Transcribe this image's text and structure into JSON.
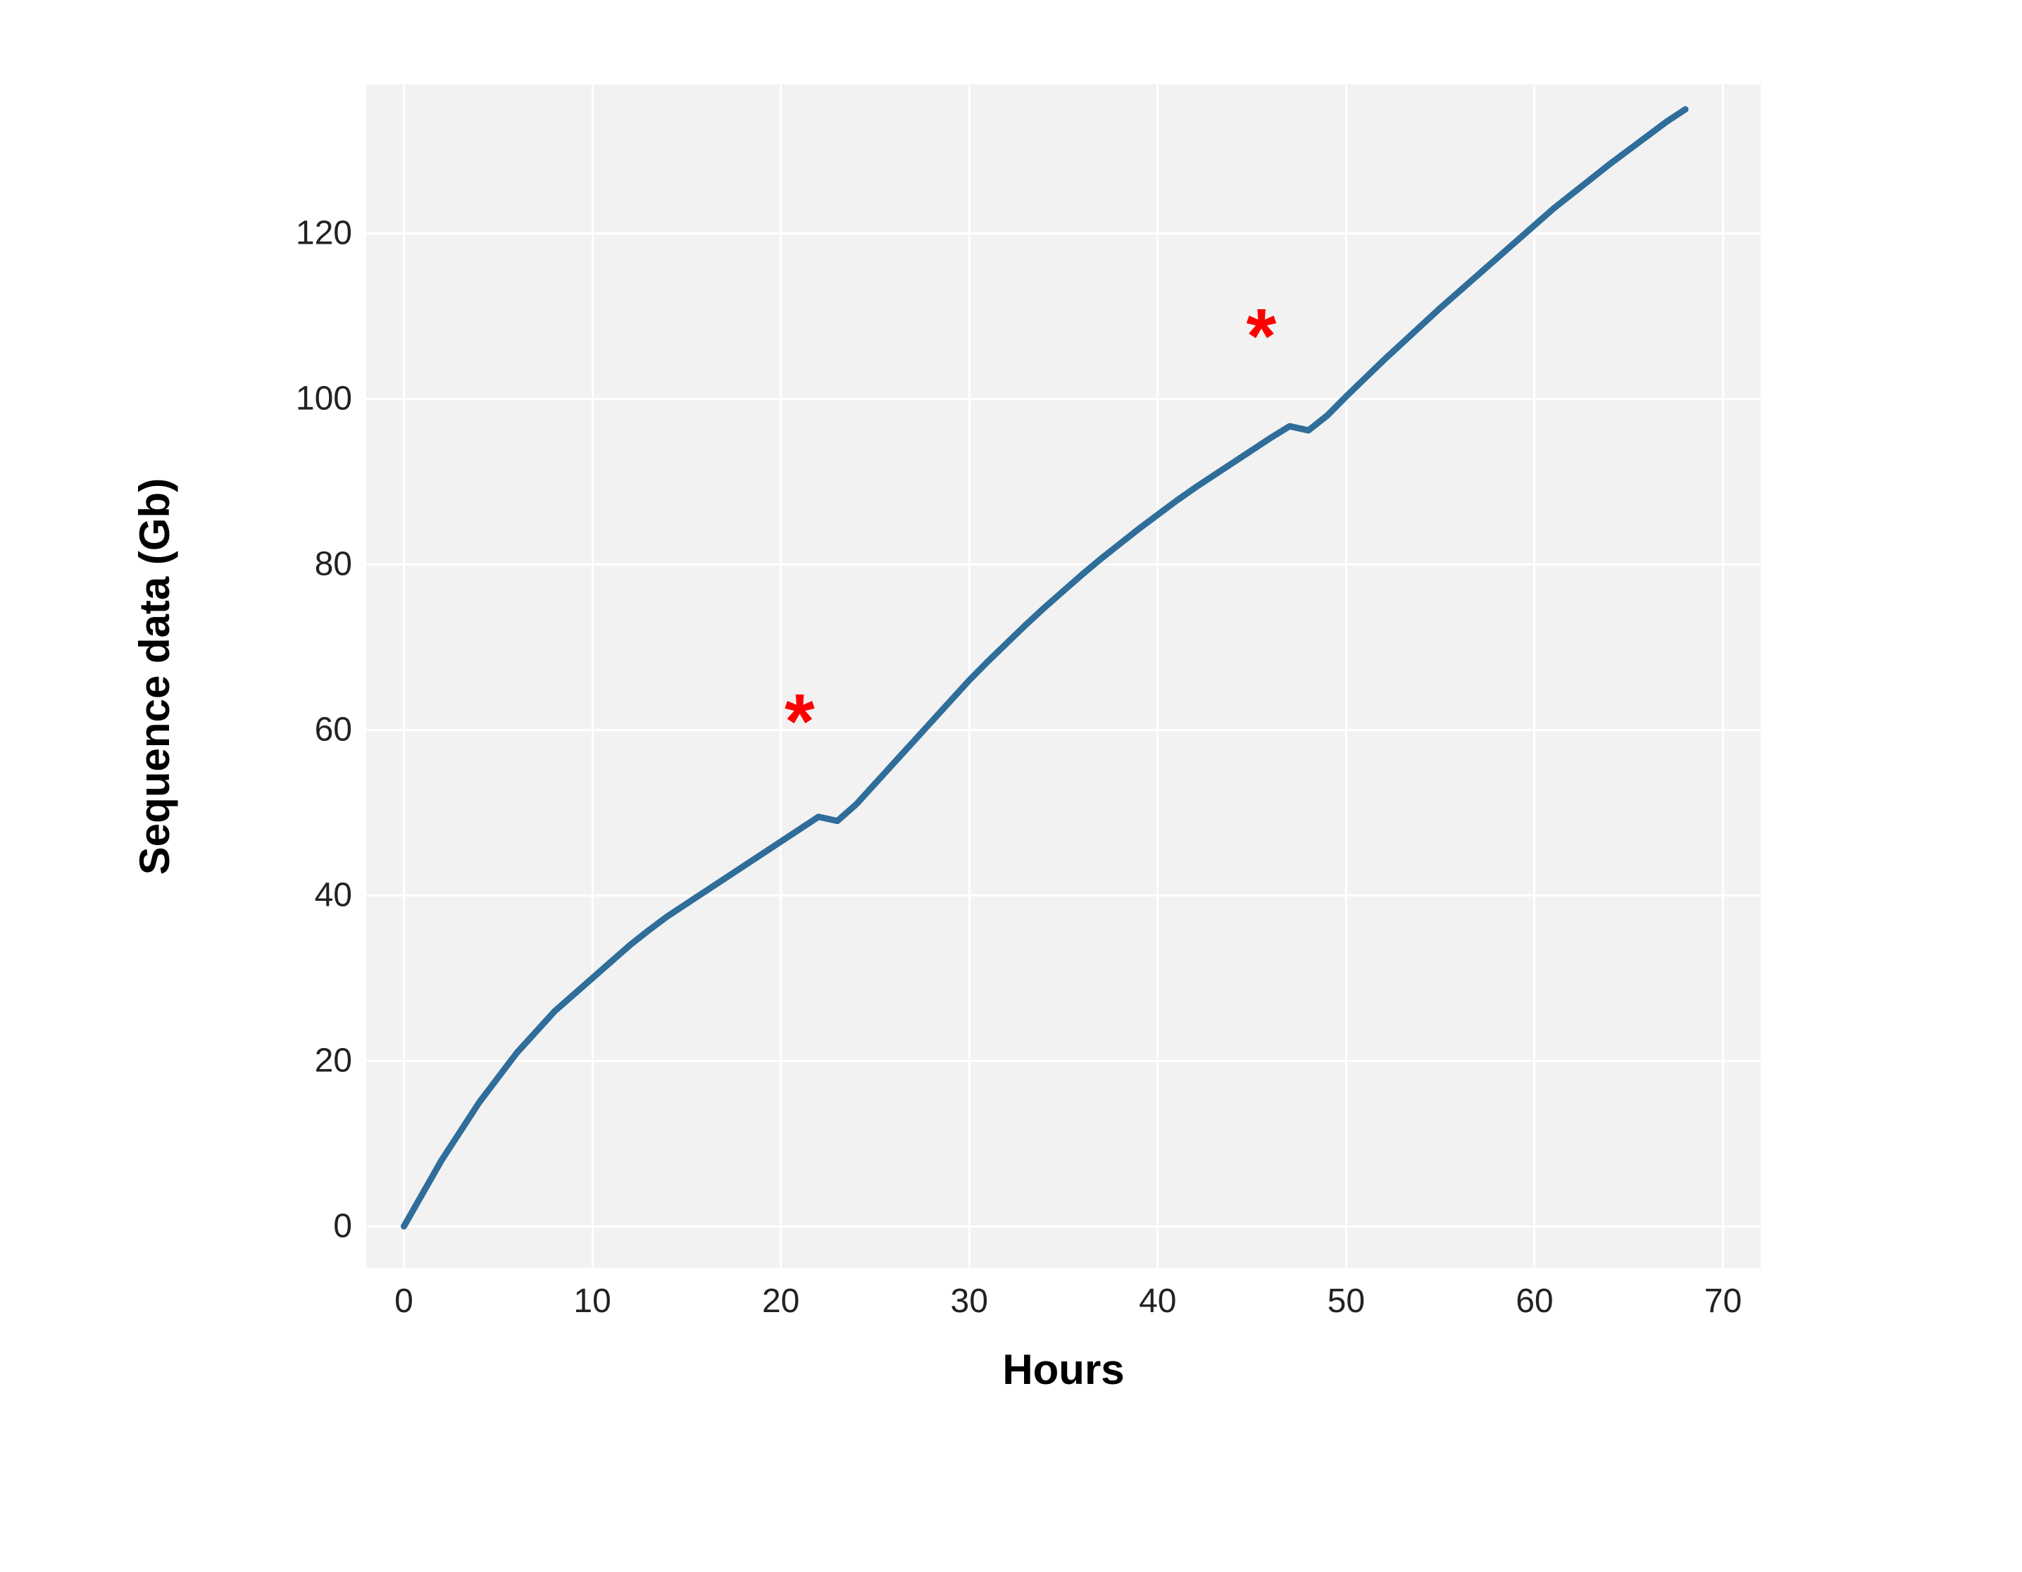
{
  "chart": {
    "type": "line",
    "x_axis": {
      "label": "Hours",
      "min": -2,
      "max": 72,
      "ticks": [
        0,
        10,
        20,
        30,
        40,
        50,
        60,
        70
      ],
      "title_fontsize": 60,
      "tick_fontsize": 48
    },
    "y_axis": {
      "label": "Sequence data (Gb)",
      "min": -5,
      "max": 138,
      "ticks": [
        0,
        20,
        40,
        60,
        80,
        100,
        120
      ],
      "title_fontsize": 60,
      "tick_fontsize": 48
    },
    "background_color": "#f2f2f2",
    "grid_color": "#ffffff",
    "line_color": "#2f6d9a",
    "line_width": 9,
    "series": {
      "x": [
        0,
        1,
        2,
        3,
        4,
        5,
        6,
        7,
        8,
        9,
        10,
        11,
        12,
        13,
        14,
        15,
        16,
        17,
        18,
        19,
        20,
        21,
        22,
        23,
        24,
        25,
        26,
        27,
        28,
        29,
        30,
        31,
        32,
        33,
        34,
        35,
        36,
        37,
        38,
        39,
        40,
        41,
        42,
        43,
        44,
        45,
        46,
        47,
        48,
        49,
        50,
        51,
        52,
        53,
        54,
        55,
        56,
        57,
        58,
        59,
        60,
        61,
        62,
        63,
        64,
        65,
        66,
        67,
        68
      ],
      "y": [
        0,
        4,
        8,
        11.5,
        15,
        18,
        21,
        23.5,
        26,
        28,
        30,
        32,
        34,
        35.8,
        37.5,
        39,
        40.5,
        42,
        43.5,
        45,
        46.5,
        48,
        49.5,
        49,
        51,
        53.5,
        56,
        58.5,
        61,
        63.5,
        66,
        68.3,
        70.5,
        72.7,
        74.8,
        76.8,
        78.8,
        80.7,
        82.5,
        84.3,
        86,
        87.7,
        89.3,
        90.8,
        92.3,
        93.8,
        95.3,
        96.7,
        96.2,
        98,
        100.3,
        102.5,
        104.7,
        106.8,
        108.9,
        111,
        113,
        115,
        117,
        119,
        121,
        123,
        124.8,
        126.6,
        128.4,
        130.1,
        131.8,
        133.5,
        135
      ]
    },
    "markers": [
      {
        "symbol": "*",
        "x": 21,
        "y": 61,
        "color": "#ff0000",
        "fontsize": 110
      },
      {
        "symbol": "*",
        "x": 45.5,
        "y": 107.5,
        "color": "#ff0000",
        "fontsize": 110
      }
    ]
  }
}
